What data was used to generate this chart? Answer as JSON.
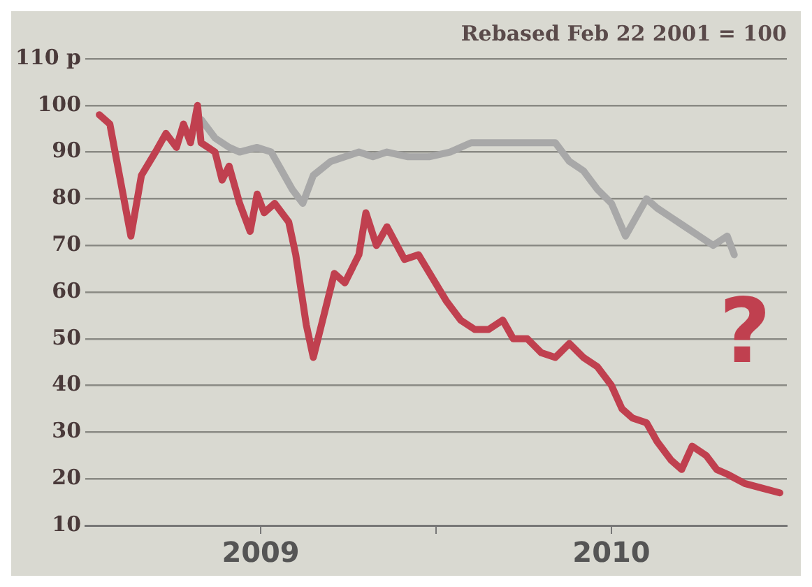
{
  "chart_data": {
    "type": "line",
    "title": "Rebased Feb 22 2001 = 100",
    "annotations": [
      "?"
    ],
    "xlim": [
      2009,
      2011
    ],
    "xticks": [
      {
        "value": 2009.5,
        "label": "2009"
      },
      {
        "value": 2010,
        "label": null
      },
      {
        "value": 2010.5,
        "label": "2010"
      }
    ],
    "ylim": [
      10,
      110
    ],
    "yticks": [
      10,
      20,
      30,
      40,
      50,
      60,
      70,
      80,
      90,
      100,
      {
        "value": 110,
        "label": "110 p"
      }
    ],
    "grid": "y",
    "legend": false,
    "marker": "none",
    "line_style": "solid",
    "series": [
      {
        "color": "#c0404f",
        "x": [
          2009.04,
          2009.07,
          2009.1,
          2009.13,
          2009.16,
          2009.2,
          2009.23,
          2009.26,
          2009.28,
          2009.3,
          2009.32,
          2009.33,
          2009.37,
          2009.39,
          2009.41,
          2009.44,
          2009.47,
          2009.49,
          2009.51,
          2009.54,
          2009.58,
          2009.6,
          2009.63,
          2009.65,
          2009.68,
          2009.71,
          2009.74,
          2009.78,
          2009.8,
          2009.83,
          2009.86,
          2009.91,
          2009.95,
          2009.99,
          2010.03,
          2010.07,
          2010.11,
          2010.15,
          2010.19,
          2010.22,
          2010.26,
          2010.3,
          2010.34,
          2010.38,
          2010.42,
          2010.46,
          2010.5,
          2010.53,
          2010.56,
          2010.6,
          2010.63,
          2010.67,
          2010.7,
          2010.73,
          2010.77,
          2010.8,
          2010.83,
          2010.88,
          2010.93,
          2010.98
        ],
        "values": [
          98,
          96,
          84,
          72,
          85,
          90,
          94,
          91,
          96,
          92,
          100,
          92,
          90,
          84,
          87,
          79,
          73,
          81,
          77,
          79,
          75,
          68,
          53,
          46,
          55,
          64,
          62,
          68,
          77,
          70,
          74,
          67,
          68,
          63,
          58,
          54,
          52,
          52,
          54,
          50,
          50,
          47,
          46,
          49,
          46,
          44,
          40,
          35,
          33,
          32,
          28,
          24,
          22,
          27,
          25,
          22,
          21,
          19,
          18,
          17
        ]
      },
      {
        "color": "#a8a8a8",
        "x": [
          2009.33,
          2009.37,
          2009.41,
          2009.44,
          2009.49,
          2009.53,
          2009.56,
          2009.59,
          2009.62,
          2009.65,
          2009.7,
          2009.74,
          2009.78,
          2009.82,
          2009.86,
          2009.92,
          2009.98,
          2010.04,
          2010.1,
          2010.17,
          2010.23,
          2010.29,
          2010.34,
          2010.38,
          2010.42,
          2010.46,
          2010.5,
          2010.54,
          2010.57,
          2010.6,
          2010.63,
          2010.67,
          2010.71,
          2010.75,
          2010.79,
          2010.83,
          2010.85
        ],
        "values": [
          97,
          93,
          91,
          90,
          91,
          90,
          86,
          82,
          79,
          85,
          88,
          89,
          90,
          89,
          90,
          89,
          89,
          90,
          92,
          92,
          92,
          92,
          92,
          88,
          86,
          82,
          79,
          72,
          76,
          80,
          78,
          76,
          74,
          72,
          70,
          72,
          68
        ]
      }
    ]
  }
}
